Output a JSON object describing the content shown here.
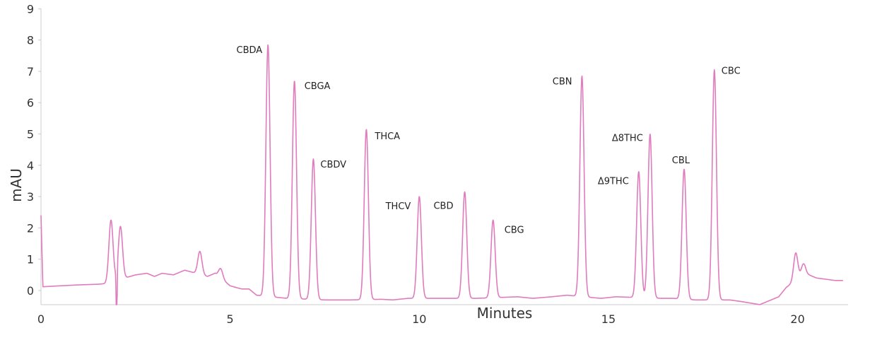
{
  "chart_data": {
    "type": "line",
    "title": "",
    "xlabel": "Minutes",
    "ylabel": "mAU",
    "xlim": [
      0,
      21.2
    ],
    "ylim": [
      -0.45,
      9
    ],
    "x_ticks": [
      0,
      5,
      10,
      15,
      20
    ],
    "y_ticks": [
      0,
      1,
      2,
      3,
      4,
      5,
      6,
      7,
      8,
      9
    ],
    "grid": false,
    "line_color": "#e07bbd",
    "baseline": [
      [
        0,
        2.4
      ],
      [
        0.05,
        0.12
      ],
      [
        0.5,
        0.15
      ],
      [
        1.0,
        0.18
      ],
      [
        1.5,
        0.2
      ],
      [
        1.7,
        0.22
      ],
      [
        2.5,
        0.5
      ],
      [
        2.8,
        0.55
      ],
      [
        3.0,
        0.45
      ],
      [
        3.2,
        0.55
      ],
      [
        3.5,
        0.5
      ],
      [
        3.8,
        0.65
      ],
      [
        4.4,
        0.45
      ],
      [
        4.6,
        0.55
      ],
      [
        5.0,
        0.15
      ],
      [
        5.3,
        0.05
      ],
      [
        5.5,
        0.05
      ],
      [
        5.7,
        -0.15
      ],
      [
        6.5,
        -0.25
      ],
      [
        7.5,
        -0.3
      ],
      [
        8.2,
        -0.3
      ],
      [
        9.0,
        -0.28
      ],
      [
        9.3,
        -0.3
      ],
      [
        9.7,
        -0.25
      ],
      [
        10.5,
        -0.25
      ],
      [
        11.5,
        -0.25
      ],
      [
        12.6,
        -0.2
      ],
      [
        13.0,
        -0.25
      ],
      [
        13.5,
        -0.2
      ],
      [
        13.9,
        -0.15
      ],
      [
        14.8,
        -0.25
      ],
      [
        15.2,
        -0.2
      ],
      [
        16.4,
        -0.25
      ],
      [
        16.7,
        -0.25
      ],
      [
        17.3,
        -0.3
      ],
      [
        17.5,
        -0.3
      ],
      [
        18.2,
        -0.3
      ],
      [
        18.5,
        -0.35
      ],
      [
        19.0,
        -0.45
      ],
      [
        19.5,
        -0.2
      ],
      [
        19.7,
        0.1
      ],
      [
        20.2,
        0.55
      ],
      [
        20.5,
        0.4
      ],
      [
        21.0,
        0.32
      ],
      [
        21.2,
        0.32
      ]
    ],
    "peaks": [
      {
        "label": "",
        "x": 1.85,
        "y": 2.25
      },
      {
        "label": "",
        "x": 2.1,
        "y": 2.05
      },
      {
        "label": "",
        "x": 4.2,
        "y": 1.25
      },
      {
        "label": "",
        "x": 4.75,
        "y": 0.7
      },
      {
        "label": "CBDA",
        "x": 6.0,
        "y": 7.85
      },
      {
        "label": "CBGA",
        "x": 6.7,
        "y": 6.7
      },
      {
        "label": "CBDV",
        "x": 7.2,
        "y": 4.2
      },
      {
        "label": "THCA",
        "x": 8.6,
        "y": 5.15
      },
      {
        "label": "THCV",
        "x": 10.0,
        "y": 3.0
      },
      {
        "label": "CBD",
        "x": 11.2,
        "y": 3.15
      },
      {
        "label": "CBG",
        "x": 11.95,
        "y": 2.25
      },
      {
        "label": "CBN",
        "x": 14.3,
        "y": 6.85
      },
      {
        "label": "Δ9THC",
        "x": 15.8,
        "y": 3.8
      },
      {
        "label": "Δ8THC",
        "x": 16.1,
        "y": 5.0
      },
      {
        "label": "CBL",
        "x": 17.0,
        "y": 3.88
      },
      {
        "label": "CBC",
        "x": 17.8,
        "y": 7.05
      },
      {
        "label": "",
        "x": 19.95,
        "y": 1.2
      },
      {
        "label": "",
        "x": 20.15,
        "y": 0.85
      }
    ]
  }
}
